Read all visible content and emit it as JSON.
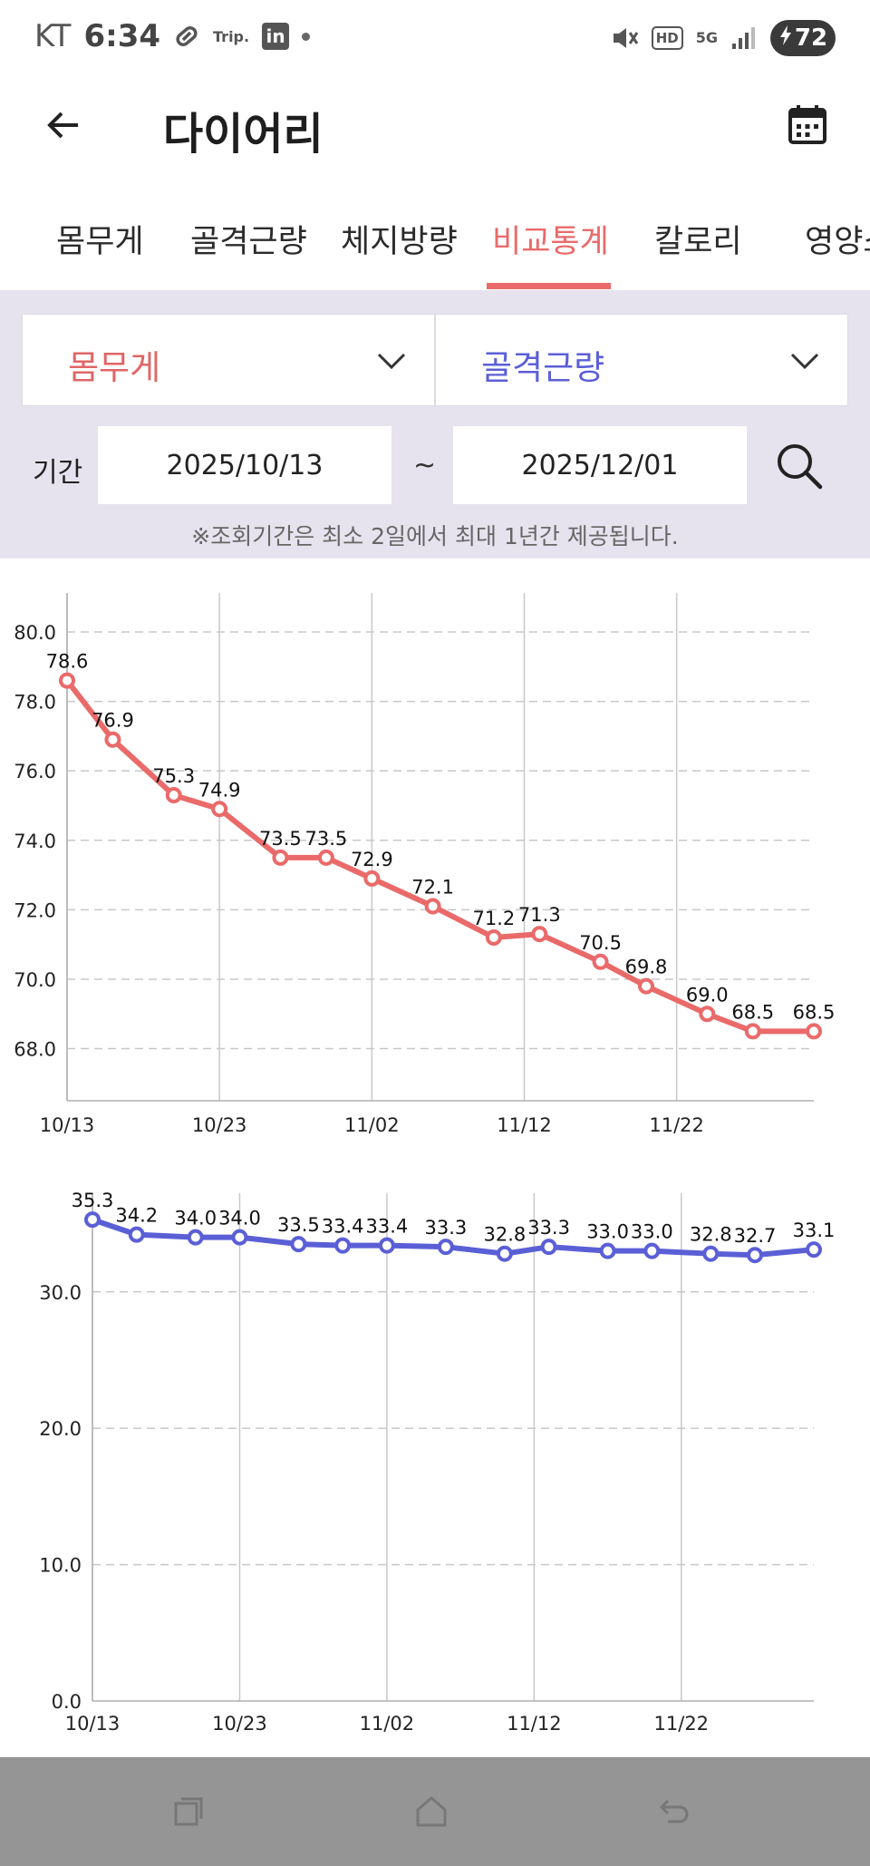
{
  "status_bar": {
    "carrier": "KT",
    "time": "6:34",
    "trip_label": "Trip.",
    "linkedin_label": "in",
    "hd_label": "HD",
    "network_label": "5G",
    "battery_level": "72",
    "icons": [
      "link-icon",
      "mute-icon",
      "signal-icon",
      "charging-icon"
    ]
  },
  "header": {
    "title": "다이어리",
    "back_icon": "back-arrow-icon",
    "calendar_icon": "calendar-icon"
  },
  "tabs": [
    {
      "label": "몸무게",
      "active": false
    },
    {
      "label": "골격근량",
      "active": false
    },
    {
      "label": "체지방량",
      "active": false
    },
    {
      "label": "비교통계",
      "active": true
    },
    {
      "label": "칼로리",
      "active": false
    },
    {
      "label": "영양소",
      "active": false
    }
  ],
  "filters": {
    "left_select": "몸무게",
    "right_select": "골격근량",
    "period_label": "기간",
    "start_date": "2025/10/13",
    "separator": "~",
    "end_date": "2025/12/01",
    "notice": "※조회기간은 최소 2일에서 최대 1년간 제공됩니다."
  },
  "colors": {
    "accent_red": "#ea6a6a",
    "accent_blue": "#5b5fd6",
    "panel_bg": "#e6e3ee",
    "nav_bg": "#959595"
  },
  "chart_data": [
    {
      "type": "line",
      "title": "",
      "series": [
        {
          "name": "몸무게",
          "color": "#ea6a6a",
          "x": [
            "10/13",
            "10/16",
            "10/20",
            "10/23",
            "10/27",
            "10/30",
            "11/02",
            "11/06",
            "11/10",
            "11/13",
            "11/17",
            "11/20",
            "11/24",
            "11/27",
            "12/01"
          ],
          "values": [
            78.6,
            76.9,
            75.3,
            74.9,
            73.5,
            73.5,
            72.9,
            72.1,
            71.2,
            71.3,
            70.5,
            69.8,
            69.0,
            68.5,
            68.5
          ],
          "labels": [
            "78.6",
            "76.9",
            "75.3",
            "74.9",
            "73.5",
            "73.5",
            "72.9",
            "72.1",
            "71.2",
            "71.3",
            "70.5",
            "69.8",
            "69.0",
            "68.5",
            "68.5"
          ]
        }
      ],
      "x_tick_labels": [
        "10/13",
        "10/23",
        "11/02",
        "11/12",
        "11/22"
      ],
      "y_tick_labels": [
        "80.0",
        "78.0",
        "76.0",
        "74.0",
        "72.0",
        "70.0",
        "68.0"
      ],
      "y_ticks": [
        80,
        78,
        76,
        74,
        72,
        70,
        68
      ],
      "ylim": [
        66.5,
        80.6
      ],
      "xlim": [
        "10/13",
        "12/01"
      ],
      "grid": true
    },
    {
      "type": "line",
      "title": "",
      "series": [
        {
          "name": "골격근량",
          "color": "#5b5fd6",
          "x": [
            "10/13",
            "10/16",
            "10/20",
            "10/23",
            "10/27",
            "10/30",
            "11/02",
            "11/06",
            "11/10",
            "11/13",
            "11/17",
            "11/20",
            "11/24",
            "11/27",
            "12/01"
          ],
          "values": [
            35.3,
            34.2,
            34.0,
            34.0,
            33.5,
            33.4,
            33.4,
            33.3,
            32.8,
            33.3,
            33.0,
            33.0,
            32.8,
            32.7,
            33.1
          ],
          "labels": [
            "35.3",
            "34.2",
            "34.0",
            "34.0",
            "33.5",
            "33.4",
            "33.4",
            "33.3",
            "32.8",
            "33.3",
            "33.0",
            "33.0",
            "32.8",
            "32.7",
            "33.1"
          ]
        }
      ],
      "x_tick_labels": [
        "10/13",
        "10/23",
        "11/02",
        "11/12",
        "11/22"
      ],
      "y_tick_labels": [
        "30.0",
        "20.0",
        "10.0",
        "0.0"
      ],
      "y_ticks": [
        30,
        20,
        10,
        0
      ],
      "ylim": [
        0,
        37.5
      ],
      "xlim": [
        "10/13",
        "12/01"
      ],
      "grid": true
    }
  ],
  "nav": {
    "recents_icon": "recents-icon",
    "home_icon": "home-icon",
    "back_icon": "back-nav-icon"
  }
}
